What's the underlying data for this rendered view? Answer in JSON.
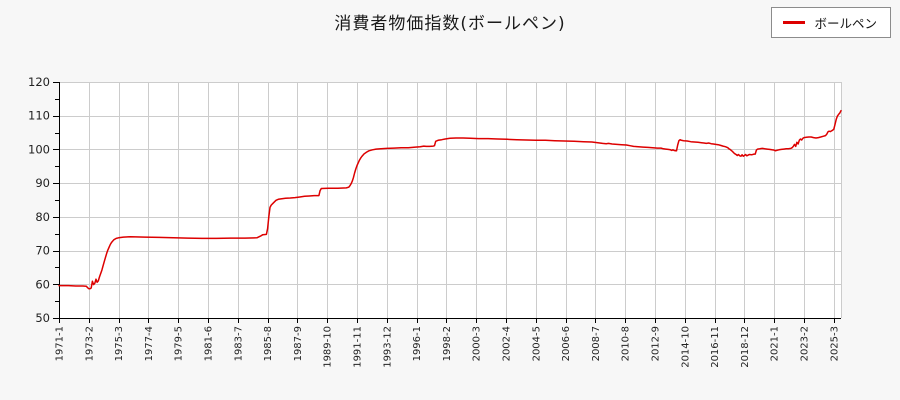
{
  "header": {
    "title": "消費者物価指数(ボールペン)"
  },
  "legend": {
    "position": "top-right",
    "items": [
      {
        "label": "ボールペン",
        "color": "#dd0000"
      }
    ]
  },
  "chart_data": {
    "type": "line",
    "title": "消費者物価指数(ボールペン)",
    "ylabel": "",
    "xlabel": "",
    "ylim": [
      50,
      120
    ],
    "y_ticks": [
      50,
      60,
      70,
      80,
      90,
      100,
      110,
      120
    ],
    "y_minor_tick_step": 5,
    "grid": true,
    "legend_position": "top-right",
    "x_unit": "monthly CPI series; month index 0 = 1971-1",
    "x_tick_interval_months": 25,
    "x_total_months": 657,
    "x_tick_labels": [
      "1971-1",
      "1973-2",
      "1975-3",
      "1977-4",
      "1979-5",
      "1981-6",
      "1983-7",
      "1985-8",
      "1987-9",
      "1989-10",
      "1991-11",
      "1993-12",
      "1996-1",
      "1998-2",
      "2000-3",
      "2002-4",
      "2004-5",
      "2006-6",
      "2008-7",
      "2010-8",
      "2012-9",
      "2014-10",
      "2016-11",
      "2018-12",
      "2021-1",
      "2023-2",
      "2025-3"
    ],
    "colors": {
      "line": "#dd0000",
      "grid": "#cccccc",
      "axis": "#000000",
      "plot_bg": "#ffffff",
      "tick_text": "#222222"
    },
    "series": [
      {
        "name": "ボールペン",
        "color": "#dd0000",
        "points_month_value": [
          [
            0,
            59.6
          ],
          [
            8,
            59.6
          ],
          [
            14,
            59.5
          ],
          [
            20,
            59.5
          ],
          [
            23,
            59.4
          ],
          [
            24,
            59.0
          ],
          [
            25,
            58.7
          ],
          [
            26,
            58.7
          ],
          [
            27,
            58.9
          ],
          [
            28,
            60.9
          ],
          [
            29,
            59.9
          ],
          [
            30,
            60.3
          ],
          [
            31,
            61.5
          ],
          [
            32,
            60.6
          ],
          [
            33,
            61.0
          ],
          [
            34,
            62.2
          ],
          [
            35,
            63.2
          ],
          [
            36,
            64.2
          ],
          [
            37,
            65.5
          ],
          [
            38,
            66.8
          ],
          [
            39,
            68.0
          ],
          [
            40,
            69.2
          ],
          [
            41,
            70.2
          ],
          [
            42,
            71.0
          ],
          [
            43,
            71.8
          ],
          [
            44,
            72.4
          ],
          [
            46,
            73.2
          ],
          [
            48,
            73.6
          ],
          [
            50,
            73.8
          ],
          [
            54,
            74.0
          ],
          [
            60,
            74.1
          ],
          [
            72,
            74.0
          ],
          [
            84,
            73.9
          ],
          [
            96,
            73.8
          ],
          [
            108,
            73.7
          ],
          [
            120,
            73.6
          ],
          [
            132,
            73.6
          ],
          [
            144,
            73.7
          ],
          [
            156,
            73.7
          ],
          [
            166,
            73.8
          ],
          [
            169,
            74.3
          ],
          [
            171,
            74.7
          ],
          [
            174,
            74.8
          ],
          [
            175,
            76.5
          ],
          [
            176,
            80.0
          ],
          [
            177,
            82.8
          ],
          [
            178,
            83.5
          ],
          [
            180,
            84.2
          ],
          [
            182,
            84.9
          ],
          [
            184,
            85.2
          ],
          [
            187,
            85.4
          ],
          [
            190,
            85.5
          ],
          [
            194,
            85.6
          ],
          [
            198,
            85.7
          ],
          [
            202,
            85.9
          ],
          [
            206,
            86.1
          ],
          [
            210,
            86.2
          ],
          [
            214,
            86.3
          ],
          [
            218,
            86.3
          ],
          [
            219,
            87.8
          ],
          [
            220,
            88.4
          ],
          [
            226,
            88.5
          ],
          [
            234,
            88.5
          ],
          [
            241,
            88.6
          ],
          [
            243,
            88.8
          ],
          [
            244,
            89.2
          ],
          [
            245,
            89.8
          ],
          [
            246,
            90.6
          ],
          [
            247,
            91.6
          ],
          [
            248,
            93.0
          ],
          [
            249,
            94.2
          ],
          [
            250,
            95.2
          ],
          [
            251,
            96.0
          ],
          [
            252,
            96.8
          ],
          [
            253,
            97.4
          ],
          [
            254,
            97.9
          ],
          [
            256,
            98.7
          ],
          [
            258,
            99.2
          ],
          [
            260,
            99.6
          ],
          [
            263,
            99.9
          ],
          [
            266,
            100.1
          ],
          [
            270,
            100.2
          ],
          [
            275,
            100.3
          ],
          [
            281,
            100.4
          ],
          [
            287,
            100.5
          ],
          [
            293,
            100.5
          ],
          [
            299,
            100.7
          ],
          [
            303,
            100.8
          ],
          [
            306,
            101.0
          ],
          [
            308,
            100.9
          ],
          [
            311,
            100.9
          ],
          [
            314,
            101.0
          ],
          [
            315,
            101.1
          ],
          [
            316,
            102.4
          ],
          [
            318,
            102.7
          ],
          [
            321,
            102.9
          ],
          [
            324,
            103.1
          ],
          [
            328,
            103.3
          ],
          [
            333,
            103.4
          ],
          [
            339,
            103.4
          ],
          [
            345,
            103.3
          ],
          [
            352,
            103.2
          ],
          [
            360,
            103.2
          ],
          [
            368,
            103.1
          ],
          [
            376,
            103.0
          ],
          [
            384,
            102.9
          ],
          [
            392,
            102.8
          ],
          [
            400,
            102.7
          ],
          [
            408,
            102.7
          ],
          [
            416,
            102.6
          ],
          [
            424,
            102.5
          ],
          [
            432,
            102.4
          ],
          [
            440,
            102.3
          ],
          [
            447,
            102.2
          ],
          [
            452,
            102.0
          ],
          [
            456,
            101.8
          ],
          [
            459,
            101.7
          ],
          [
            461,
            101.8
          ],
          [
            464,
            101.6
          ],
          [
            468,
            101.5
          ],
          [
            472,
            101.4
          ],
          [
            476,
            101.3
          ],
          [
            479,
            101.1
          ],
          [
            482,
            100.9
          ],
          [
            486,
            100.8
          ],
          [
            490,
            100.7
          ],
          [
            494,
            100.6
          ],
          [
            498,
            100.5
          ],
          [
            502,
            100.4
          ],
          [
            505,
            100.4
          ],
          [
            507,
            100.2
          ],
          [
            509,
            100.1
          ],
          [
            511,
            100.0
          ],
          [
            513,
            99.9
          ],
          [
            514,
            99.7
          ],
          [
            515,
            99.9
          ],
          [
            516,
            99.7
          ],
          [
            517,
            99.6
          ],
          [
            518,
            99.6
          ],
          [
            519,
            101.3
          ],
          [
            520,
            102.6
          ],
          [
            521,
            102.9
          ],
          [
            522,
            102.7
          ],
          [
            524,
            102.6
          ],
          [
            527,
            102.5
          ],
          [
            530,
            102.3
          ],
          [
            533,
            102.2
          ],
          [
            536,
            102.1
          ],
          [
            539,
            102.0
          ],
          [
            541,
            101.9
          ],
          [
            543,
            101.8
          ],
          [
            545,
            101.9
          ],
          [
            547,
            101.7
          ],
          [
            549,
            101.6
          ],
          [
            551,
            101.5
          ],
          [
            553,
            101.4
          ],
          [
            555,
            101.2
          ],
          [
            557,
            101.0
          ],
          [
            559,
            100.8
          ],
          [
            561,
            100.5
          ],
          [
            562,
            100.2
          ],
          [
            563,
            100.0
          ],
          [
            564,
            99.7
          ],
          [
            565,
            99.4
          ],
          [
            566,
            99.0
          ],
          [
            567,
            98.7
          ],
          [
            568,
            98.5
          ],
          [
            569,
            98.2
          ],
          [
            570,
            98.5
          ],
          [
            571,
            98.1
          ],
          [
            572,
            98.0
          ],
          [
            573,
            98.4
          ],
          [
            574,
            98.0
          ],
          [
            575,
            98.2
          ],
          [
            576,
            98.5
          ],
          [
            577,
            98.1
          ],
          [
            578,
            98.3
          ],
          [
            579,
            98.5
          ],
          [
            581,
            98.4
          ],
          [
            583,
            98.6
          ],
          [
            584,
            98.6
          ],
          [
            585,
            99.8
          ],
          [
            586,
            100.1
          ],
          [
            588,
            100.2
          ],
          [
            590,
            100.3
          ],
          [
            592,
            100.2
          ],
          [
            594,
            100.1
          ],
          [
            596,
            100.0
          ],
          [
            598,
            99.9
          ],
          [
            600,
            99.8
          ],
          [
            601,
            99.6
          ],
          [
            602,
            99.7
          ],
          [
            604,
            99.9
          ],
          [
            606,
            100.0
          ],
          [
            608,
            100.1
          ],
          [
            610,
            100.2
          ],
          [
            612,
            100.2
          ],
          [
            614,
            100.3
          ],
          [
            615,
            100.5
          ],
          [
            616,
            100.9
          ],
          [
            617,
            101.5
          ],
          [
            618,
            100.9
          ],
          [
            619,
            102.1
          ],
          [
            620,
            101.6
          ],
          [
            621,
            102.7
          ],
          [
            622,
            103.1
          ],
          [
            623,
            102.8
          ],
          [
            624,
            103.3
          ],
          [
            625,
            103.5
          ],
          [
            627,
            103.6
          ],
          [
            629,
            103.7
          ],
          [
            631,
            103.7
          ],
          [
            633,
            103.5
          ],
          [
            635,
            103.4
          ],
          [
            637,
            103.5
          ],
          [
            639,
            103.7
          ],
          [
            641,
            103.9
          ],
          [
            643,
            104.1
          ],
          [
            644,
            104.5
          ],
          [
            645,
            105.2
          ],
          [
            646,
            105.4
          ],
          [
            647,
            105.3
          ],
          [
            648,
            105.5
          ],
          [
            649,
            105.7
          ],
          [
            650,
            106.0
          ],
          [
            651,
            107.4
          ],
          [
            652,
            108.9
          ],
          [
            653,
            109.9
          ],
          [
            654,
            110.4
          ],
          [
            655,
            110.8
          ],
          [
            656,
            111.5
          ]
        ]
      }
    ]
  }
}
